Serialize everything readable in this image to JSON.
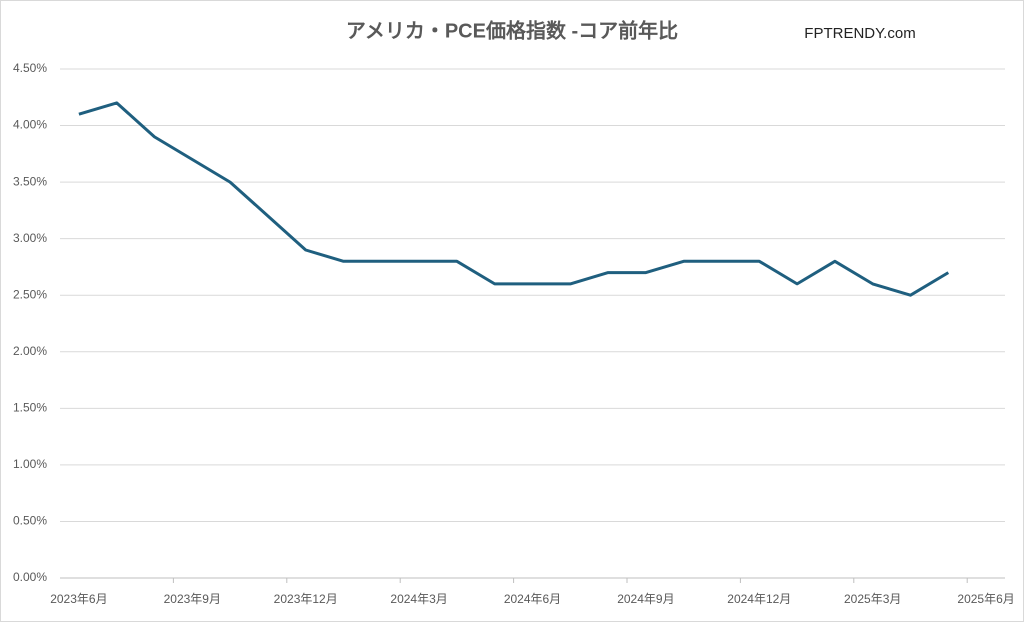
{
  "chart_data": {
    "type": "line",
    "title": "アメリカ・PCE価格指数 -コア前年比",
    "watermark": "FPTRENDY.com",
    "categories": [
      "2023年6月",
      null,
      null,
      "2023年9月",
      null,
      null,
      "2023年12月",
      null,
      null,
      "2024年3月",
      null,
      null,
      "2024年6月",
      null,
      null,
      "2024年9月",
      null,
      null,
      "2024年12月",
      null,
      null,
      "2025年3月",
      null,
      null,
      "2025年6月"
    ],
    "values": [
      4.1,
      4.2,
      3.9,
      3.7,
      3.5,
      3.2,
      2.9,
      2.8,
      2.8,
      2.8,
      2.8,
      2.6,
      2.6,
      2.6,
      2.7,
      2.7,
      2.8,
      2.8,
      2.8,
      2.6,
      2.8,
      2.6,
      2.5,
      2.7,
      null
    ],
    "color": "#1f5f7f",
    "ylim": [
      0,
      4.5
    ],
    "yticks": [
      {
        "value": 0,
        "label": "0.00%"
      },
      {
        "value": 0.5,
        "label": "0.50%"
      },
      {
        "value": 1,
        "label": "1.00%"
      },
      {
        "value": 1.5,
        "label": "1.50%"
      },
      {
        "value": 2,
        "label": "2.00%"
      },
      {
        "value": 2.5,
        "label": "2.50%"
      },
      {
        "value": 3,
        "label": "3.00%"
      },
      {
        "value": 3.5,
        "label": "3.50%"
      },
      {
        "value": 4,
        "label": "4.00%"
      },
      {
        "value": 4.5,
        "label": "4.50%"
      }
    ],
    "grid": true
  }
}
